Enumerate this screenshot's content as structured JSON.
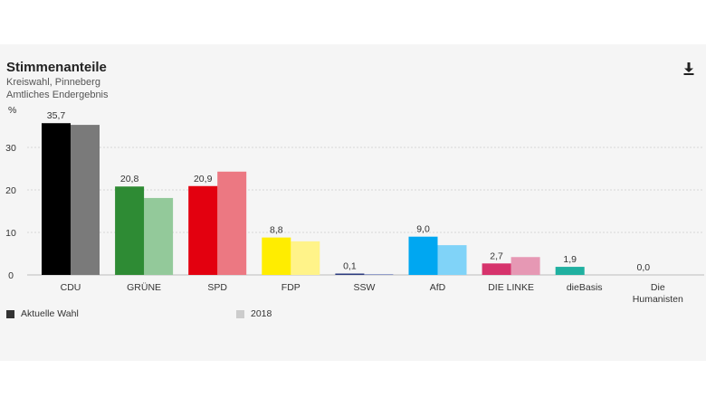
{
  "header": {
    "title": "Stimmenanteile",
    "subtitle_lines": [
      "Kreiswahl, Pinneberg",
      "Amtliches Endergebnis"
    ],
    "download_icon": "download-icon"
  },
  "chart_data": {
    "type": "bar",
    "ylabel": "%",
    "ylim": [
      0,
      36
    ],
    "yticks": [
      0,
      10,
      20,
      30
    ],
    "grid": true,
    "legend_placement": "bottom-left",
    "categories": [
      "CDU",
      "GRÜNE",
      "SPD",
      "FDP",
      "SSW",
      "AfD",
      "DIE LINKE",
      "dieBasis",
      "Die Humanisten"
    ],
    "category_label_lines": [
      [
        "CDU"
      ],
      [
        "GRÜNE"
      ],
      [
        "SPD"
      ],
      [
        "FDP"
      ],
      [
        "SSW"
      ],
      [
        "AfD"
      ],
      [
        "DIE LINKE"
      ],
      [
        "dieBasis"
      ],
      [
        "Die",
        "Humanisten"
      ]
    ],
    "series": [
      {
        "name": "Aktuelle Wahl",
        "values": [
          35.7,
          20.8,
          20.9,
          8.8,
          0.1,
          9.0,
          2.7,
          1.9,
          0.0
        ],
        "labels": [
          "35,7",
          "20,8",
          "20,9",
          "8,8",
          "0,1",
          "9,0",
          "2,7",
          "1,9",
          "0,0"
        ],
        "colors": [
          "#000000",
          "#2e8b34",
          "#e3000f",
          "#ffed00",
          "#2c3a7e",
          "#00a7f1",
          "#d6336c",
          "#20b0a0",
          "#555555"
        ]
      },
      {
        "name": "2018",
        "values": [
          35.3,
          18.1,
          24.3,
          7.9,
          0.2,
          7.0,
          4.2,
          null,
          null
        ],
        "colors": [
          "#7a7a7a",
          "#93c99a",
          "#ec7882",
          "#fff389",
          "#8d98c8",
          "#80d3f8",
          "#e698b4",
          "#20b0a0",
          "#555555"
        ]
      }
    ]
  },
  "legend": {
    "current": {
      "label": "Aktuelle Wahl",
      "color": "#333333"
    },
    "previous": {
      "label": "2018",
      "color": "#cccccc"
    }
  }
}
